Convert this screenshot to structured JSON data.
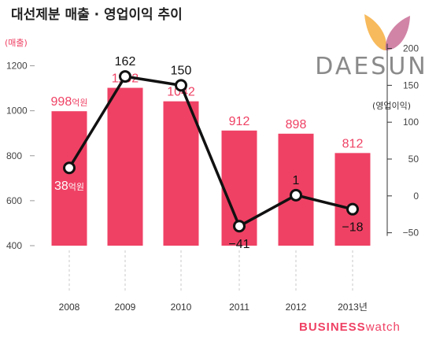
{
  "title": "대선제분 매출 · 영업이익 추이",
  "brand": {
    "name": "DAESUN",
    "footer_bold": "BUSINESS",
    "footer_light": "watch"
  },
  "colors": {
    "bar": "#ef4164",
    "line": "#111111",
    "marker_fill": "#ffffff",
    "label_pink": "#ef4164",
    "text": "#222222",
    "logo_text": "#8a8a8a",
    "logo_orange": "#f6b24a",
    "logo_purple": "#c96e96"
  },
  "chart_data": {
    "type": "bar",
    "categories": [
      "2008",
      "2009",
      "2010",
      "2011",
      "2012",
      "2013년"
    ],
    "series": [
      {
        "name": "매출",
        "type": "bar",
        "axis": "left",
        "values": [
          998,
          1102,
          1042,
          912,
          898,
          812
        ],
        "labels": [
          "998억원",
          "1102",
          "1042",
          "912",
          "898",
          "812"
        ]
      },
      {
        "name": "영업이익",
        "type": "line",
        "axis": "right",
        "values": [
          38,
          162,
          150,
          -41,
          1,
          -18
        ],
        "labels": [
          "38억원",
          "162",
          "150",
          "−41",
          "1",
          "−18"
        ]
      }
    ],
    "y_left": {
      "label": "(매출)",
      "ticks": [
        "400",
        "600",
        "800",
        "1000",
        "1200"
      ],
      "ylim": [
        400,
        1300
      ]
    },
    "y_right": {
      "label": "(영업이익)",
      "ticks": [
        "200",
        "150",
        "100",
        "50",
        "0",
        "−50"
      ],
      "ylim": [
        -67.5,
        207
      ]
    },
    "grid": false
  }
}
